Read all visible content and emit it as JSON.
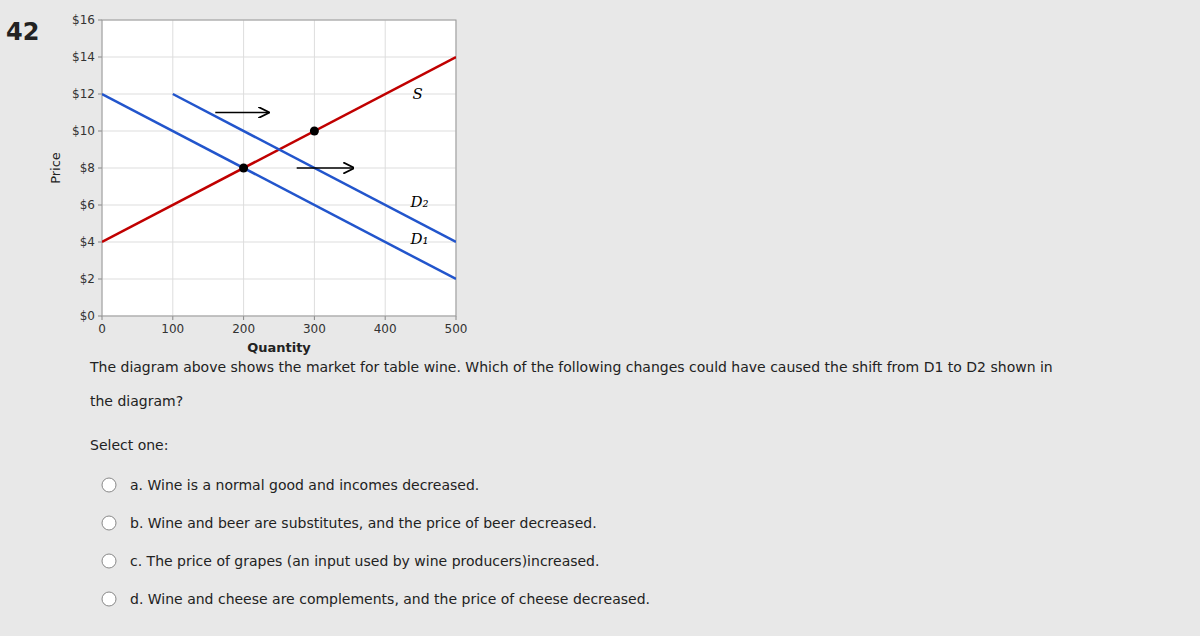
{
  "chart_data": {
    "type": "line",
    "xlabel": "Quantity",
    "ylabel": "Price",
    "xlim": [
      0,
      500
    ],
    "ylim": [
      0,
      16
    ],
    "xticks": [
      0,
      100,
      200,
      300,
      400,
      500
    ],
    "yticks": [
      {
        "value": 0,
        "label": "$0"
      },
      {
        "value": 2,
        "label": "$2"
      },
      {
        "value": 4,
        "label": "$4"
      },
      {
        "value": 6,
        "label": "$6"
      },
      {
        "value": 8,
        "label": "$8"
      },
      {
        "value": 10,
        "label": "$10"
      },
      {
        "value": 12,
        "label": "$12"
      },
      {
        "value": 14,
        "label": "$14"
      },
      {
        "value": 16,
        "label": "$16"
      }
    ],
    "grid": true,
    "series": [
      {
        "name": "S",
        "color": "#c00000",
        "x": [
          0,
          500
        ],
        "values": [
          4,
          14
        ]
      },
      {
        "name": "D₂",
        "color": "#2255cc",
        "x": [
          100,
          500
        ],
        "values": [
          12,
          4
        ]
      },
      {
        "name": "D₁",
        "color": "#2255cc",
        "x": [
          0,
          500
        ],
        "values": [
          12,
          2
        ]
      },
      {
        "type": "scatter",
        "marker": "circle",
        "color": "#000000",
        "x": [
          200,
          300
        ],
        "values": [
          8,
          10
        ]
      }
    ],
    "arrows": [
      {
        "x_start": 160,
        "x_end": 235,
        "y": 11.0
      },
      {
        "x_start": 275,
        "x_end": 355,
        "y": 8.0
      }
    ]
  },
  "question": {
    "number": "42",
    "lines": [
      "The diagram above shows the market for table wine. Which of the following changes could have caused the shift from D1 to D2 shown in",
      "the diagram?"
    ],
    "select_text": "Select one:",
    "options": [
      "a.   Wine is a normal good and incomes decreased.",
      "b.   Wine and beer are substitutes, and the price of beer decreased.",
      "c.   The price of grapes (an input used by wine producers)increased.",
      "d.   Wine and cheese are complements, and the price of cheese decreased."
    ]
  }
}
